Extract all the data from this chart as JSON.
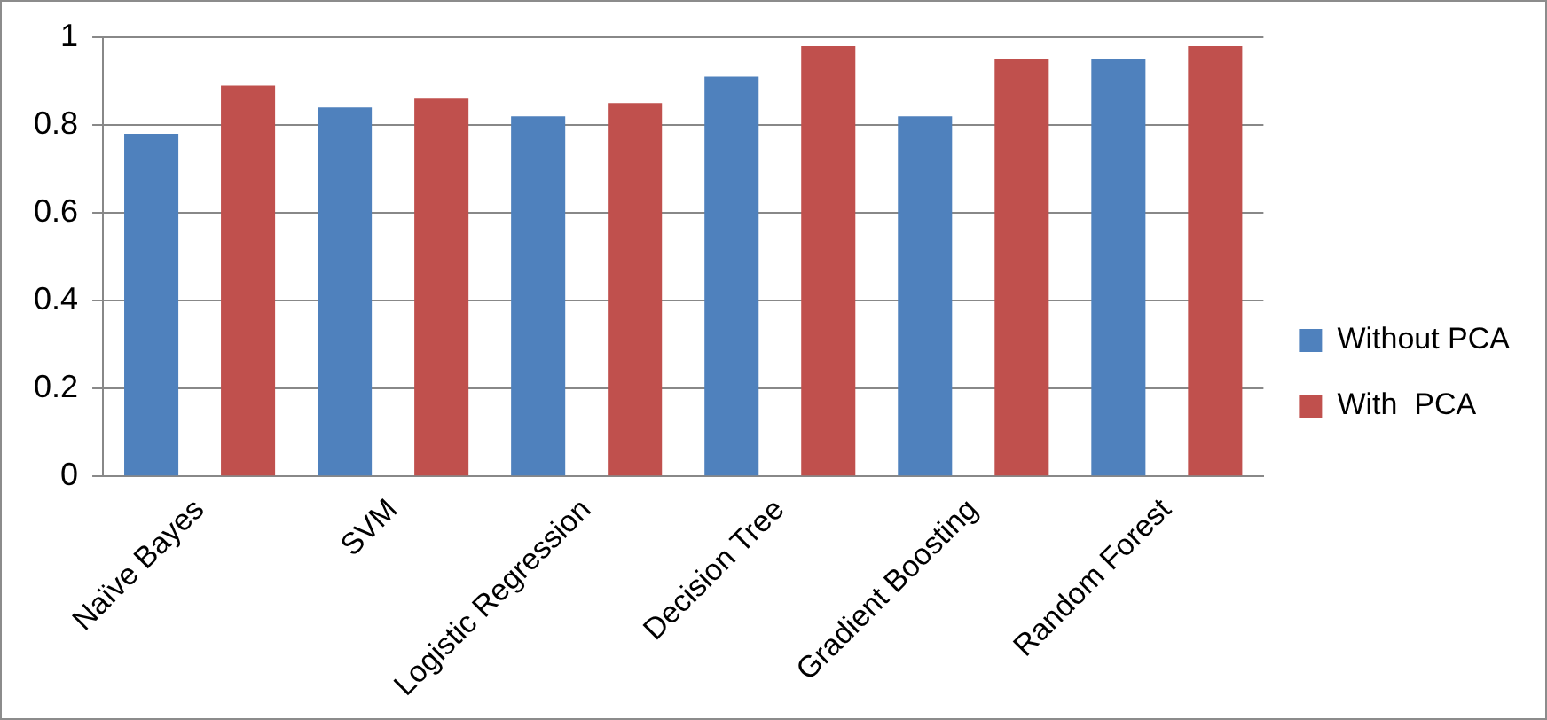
{
  "chart_data": {
    "type": "bar",
    "categories": [
      "Naïve Bayes",
      "SVM",
      "Logistic Regression",
      "Decision Tree",
      "Gradient Boosting",
      "Random Forest"
    ],
    "series": [
      {
        "name": "Without PCA",
        "color": "#4f81bd",
        "values": [
          0.78,
          0.84,
          0.82,
          0.91,
          0.82,
          0.95
        ]
      },
      {
        "name": "With  PCA",
        "color": "#c0504d",
        "values": [
          0.89,
          0.86,
          0.85,
          0.98,
          0.95,
          0.98
        ]
      }
    ],
    "ylim": [
      0,
      1
    ],
    "yticks": [
      0,
      0.2,
      0.4,
      0.6,
      0.8,
      1
    ],
    "grid": "y",
    "legend": "right"
  }
}
